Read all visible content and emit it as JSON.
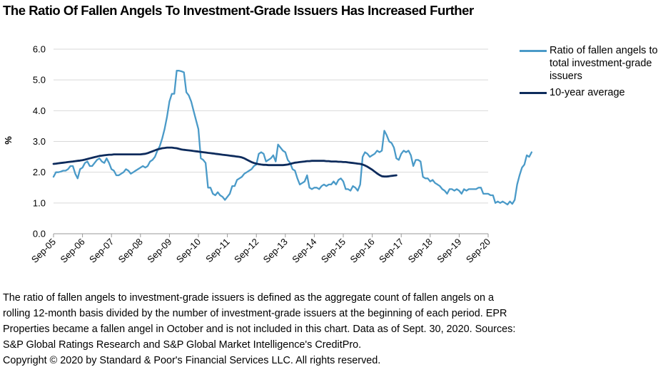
{
  "title": "The Ratio Of Fallen Angels To Investment-Grade Issuers Has Increased Further",
  "footnote": {
    "lines": [
      "The ratio of fallen angels to investment-grade issuers is defined as the aggregate count of fallen angels on a",
      "rolling 12-month basis divided by the number of investment-grade issuers at the beginning of each period. EPR",
      "Properties became a fallen angel in October and is not included in this chart. Data as of Sept. 30, 2020. Sources:",
      "S&P Global Ratings Research and S&P Global Market Intelligence's CreditPro.",
      "Copyright © 2020 by Standard & Poor's Financial Services LLC. All rights reserved."
    ]
  },
  "chart_data": {
    "type": "line",
    "title": "The Ratio Of Fallen Angels To Investment-Grade Issuers Has Increased Further",
    "xlabel": "",
    "ylabel": "%",
    "ylim": [
      0,
      6
    ],
    "yticks": [
      "0.0",
      "1.0",
      "2.0",
      "3.0",
      "4.0",
      "5.0",
      "6.0"
    ],
    "xticks": [
      "Sep-05",
      "Sep-06",
      "Sep-07",
      "Sep-08",
      "Sep-09",
      "Sep-10",
      "Sep-11",
      "Sep-12",
      "Sep-13",
      "Sep-14",
      "Sep-15",
      "Sep-16",
      "Sep-17",
      "Sep-18",
      "Sep-19",
      "Sep-20"
    ],
    "x_start": "Sep-05",
    "x_interval": "monthly",
    "grid": "horizontal",
    "legend_position": "right",
    "series": [
      {
        "name": "Ratio of fallen angels to total investment-grade issuers",
        "color": "#4a9ac8",
        "values": [
          1.85,
          2.0,
          2.0,
          2.02,
          2.05,
          2.05,
          2.1,
          2.2,
          2.2,
          1.95,
          1.8,
          2.1,
          2.15,
          2.3,
          2.35,
          2.2,
          2.2,
          2.3,
          2.4,
          2.45,
          2.35,
          2.3,
          2.45,
          2.3,
          2.1,
          2.05,
          1.9,
          1.9,
          1.95,
          2.0,
          2.1,
          2.05,
          1.95,
          2.0,
          2.05,
          2.1,
          2.15,
          2.2,
          2.15,
          2.2,
          2.35,
          2.4,
          2.5,
          2.7,
          2.85,
          3.1,
          3.4,
          3.8,
          4.3,
          4.55,
          4.55,
          5.3,
          5.3,
          5.28,
          5.25,
          4.6,
          4.5,
          4.3,
          4.0,
          3.7,
          3.4,
          2.45,
          2.4,
          2.3,
          1.5,
          1.5,
          1.3,
          1.25,
          1.35,
          1.25,
          1.2,
          1.1,
          1.2,
          1.3,
          1.55,
          1.55,
          1.75,
          1.8,
          1.85,
          1.95,
          2.0,
          2.05,
          2.1,
          2.2,
          2.25,
          2.6,
          2.65,
          2.6,
          2.35,
          2.4,
          2.45,
          2.55,
          2.35,
          2.9,
          2.8,
          2.7,
          2.65,
          2.4,
          2.3,
          2.1,
          2.05,
          1.8,
          1.6,
          1.65,
          1.7,
          1.9,
          1.5,
          1.45,
          1.5,
          1.5,
          1.45,
          1.55,
          1.6,
          1.55,
          1.6,
          1.6,
          1.7,
          1.6,
          1.75,
          1.8,
          1.7,
          1.45,
          1.45,
          1.4,
          1.55,
          1.5,
          1.4,
          1.6,
          2.5,
          2.65,
          2.6,
          2.5,
          2.55,
          2.6,
          2.7,
          2.65,
          2.7,
          3.35,
          3.2,
          3.0,
          2.95,
          2.8,
          2.45,
          2.4,
          2.6,
          2.7,
          2.65,
          2.7,
          2.55,
          2.2,
          2.4,
          2.4,
          2.35,
          1.85,
          1.8,
          1.8,
          1.7,
          1.75,
          1.65,
          1.6,
          1.55,
          1.45,
          1.4,
          1.3,
          1.45,
          1.45,
          1.4,
          1.45,
          1.4,
          1.3,
          1.45,
          1.4,
          1.45,
          1.45,
          1.45,
          1.45,
          1.5,
          1.5,
          1.3,
          1.3,
          1.3,
          1.25,
          1.25,
          1.0,
          1.05,
          1.0,
          1.05,
          1.0,
          0.95,
          1.05,
          0.97,
          1.1,
          1.6,
          1.9,
          2.15,
          2.25,
          2.55,
          2.5,
          2.65
        ]
      },
      {
        "name": "10-year average",
        "color": "#0d2b5c",
        "values": [
          2.27,
          2.28,
          2.29,
          2.3,
          2.31,
          2.32,
          2.33,
          2.34,
          2.35,
          2.36,
          2.37,
          2.38,
          2.39,
          2.41,
          2.43,
          2.45,
          2.47,
          2.49,
          2.51,
          2.53,
          2.54,
          2.55,
          2.56,
          2.57,
          2.57,
          2.58,
          2.58,
          2.58,
          2.58,
          2.58,
          2.58,
          2.58,
          2.58,
          2.58,
          2.58,
          2.58,
          2.58,
          2.59,
          2.6,
          2.62,
          2.65,
          2.68,
          2.71,
          2.74,
          2.76,
          2.78,
          2.79,
          2.8,
          2.8,
          2.8,
          2.79,
          2.78,
          2.76,
          2.74,
          2.73,
          2.72,
          2.71,
          2.7,
          2.69,
          2.68,
          2.67,
          2.66,
          2.65,
          2.64,
          2.63,
          2.62,
          2.61,
          2.6,
          2.59,
          2.58,
          2.57,
          2.56,
          2.55,
          2.54,
          2.53,
          2.52,
          2.51,
          2.5,
          2.48,
          2.45,
          2.41,
          2.37,
          2.33,
          2.3,
          2.28,
          2.26,
          2.25,
          2.24,
          2.24,
          2.23,
          2.23,
          2.23,
          2.23,
          2.23,
          2.23,
          2.23,
          2.24,
          2.25,
          2.27,
          2.29,
          2.31,
          2.32,
          2.33,
          2.34,
          2.35,
          2.36,
          2.36,
          2.37,
          2.37,
          2.37,
          2.37,
          2.37,
          2.37,
          2.36,
          2.36,
          2.35,
          2.35,
          2.35,
          2.34,
          2.34,
          2.33,
          2.33,
          2.32,
          2.31,
          2.3,
          2.29,
          2.28,
          2.27,
          2.25,
          2.22,
          2.18,
          2.13,
          2.08,
          2.02,
          1.96,
          1.91,
          1.87,
          1.86,
          1.86,
          1.87,
          1.88,
          1.89,
          1.9
        ]
      }
    ]
  }
}
